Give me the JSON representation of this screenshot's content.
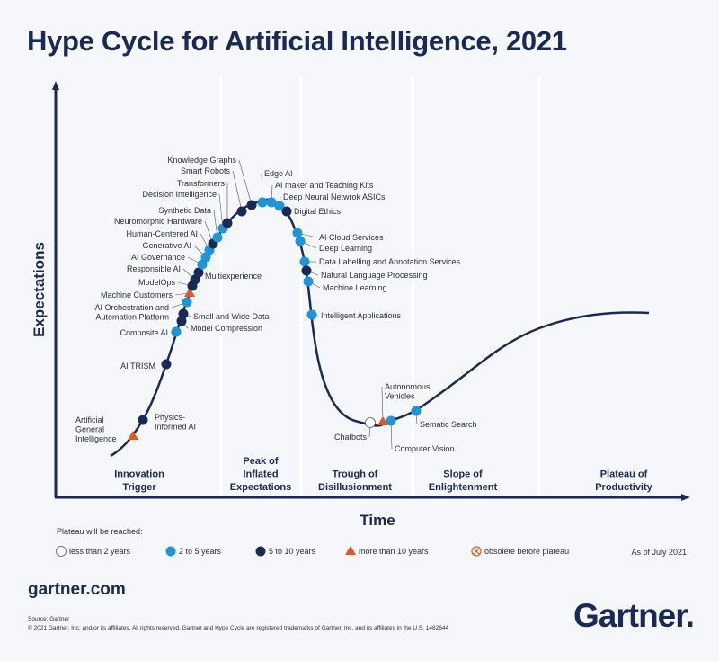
{
  "title": "Hype Cycle for Artificial Intelligence, 2021",
  "axes": {
    "y_label": "Expectations",
    "x_label": "Time"
  },
  "phases": [
    {
      "lines": [
        "Innovation",
        "Trigger"
      ]
    },
    {
      "lines": [
        "Peak of",
        "Inflated",
        "Expectations"
      ]
    },
    {
      "lines": [
        "Trough of",
        "Disillusionment"
      ]
    },
    {
      "lines": [
        "Slope of",
        "Enlightenment"
      ]
    },
    {
      "lines": [
        "Plateau of",
        "Productivity"
      ]
    }
  ],
  "colors": {
    "navy": "#1a2a56",
    "less_than_2": "#ffffff",
    "2_to_5": "#1c96d8",
    "5_to_10": "#1a2a56",
    "more_than_10": "#e8561c",
    "obsolete": "#e8561c"
  },
  "technologies": [
    {
      "name": "Artificial General Intelligence",
      "lines": [
        "Artificial",
        "General",
        "Intelligence"
      ],
      "plateau": "more_than_10"
    },
    {
      "name": "Physics-Informed AI",
      "lines": [
        "Physics-",
        "Informed AI"
      ],
      "plateau": "5_to_10"
    },
    {
      "name": "AI TRISM",
      "lines": [
        "AI TRISM"
      ],
      "plateau": "5_to_10"
    },
    {
      "name": "Composite AI",
      "lines": [
        "Composite AI"
      ],
      "plateau": "2_to_5"
    },
    {
      "name": "Model Compression",
      "lines": [
        "Model Compression"
      ],
      "plateau": "5_to_10"
    },
    {
      "name": "Small and Wide Data",
      "lines": [
        "Small and Wide Data"
      ],
      "plateau": "5_to_10"
    },
    {
      "name": "AI Orchestration and Automation Platform",
      "lines": [
        "AI Orchestration and",
        "Automation Platform"
      ],
      "plateau": "2_to_5"
    },
    {
      "name": "Machine Customers",
      "lines": [
        "Machine Customers"
      ],
      "plateau": "more_than_10"
    },
    {
      "name": "ModelOps",
      "lines": [
        "ModelOps"
      ],
      "plateau": "5_to_10"
    },
    {
      "name": "Multiexperience",
      "lines": [
        "Multiexperience"
      ],
      "plateau": "5_to_10"
    },
    {
      "name": "Responsible AI",
      "lines": [
        "Responsible AI"
      ],
      "plateau": "5_to_10"
    },
    {
      "name": "AI Governance",
      "lines": [
        "AI Governance"
      ],
      "plateau": "2_to_5"
    },
    {
      "name": "Generative AI",
      "lines": [
        "Generative AI"
      ],
      "plateau": "2_to_5"
    },
    {
      "name": "Human-Centered AI",
      "lines": [
        "Human-Centered AI"
      ],
      "plateau": "2_to_5"
    },
    {
      "name": "Neuromorphic Hardware",
      "lines": [
        "Neuromorphic Hardware"
      ],
      "plateau": "5_to_10"
    },
    {
      "name": "Synthetic Data",
      "lines": [
        "Synthetic Data"
      ],
      "plateau": "2_to_5"
    },
    {
      "name": "Decision Intelligence",
      "lines": [
        "Decision Intelligence"
      ],
      "plateau": "2_to_5"
    },
    {
      "name": "Transformers",
      "lines": [
        "Transformers"
      ],
      "plateau": "5_to_10"
    },
    {
      "name": "Smart Robots",
      "lines": [
        "Smart Robots"
      ],
      "plateau": "5_to_10"
    },
    {
      "name": "Knowledge Graphs",
      "lines": [
        "Knowledge Graphs"
      ],
      "plateau": "5_to_10"
    },
    {
      "name": "Edge AI",
      "lines": [
        "Edge AI"
      ],
      "plateau": "2_to_5"
    },
    {
      "name": "AI maker and Teaching Kits",
      "lines": [
        "AI maker and Teaching Kits"
      ],
      "plateau": "2_to_5"
    },
    {
      "name": "Deep Neural Netwrok ASICs",
      "lines": [
        "Deep Neural Netwrok ASICs"
      ],
      "plateau": "2_to_5"
    },
    {
      "name": "Digital Ethics",
      "lines": [
        "Digital Ethics"
      ],
      "plateau": "5_to_10"
    },
    {
      "name": "AI Cloud Services",
      "lines": [
        "AI Cloud Services"
      ],
      "plateau": "2_to_5"
    },
    {
      "name": "Deep Learning",
      "lines": [
        "Deep Learning"
      ],
      "plateau": "2_to_5"
    },
    {
      "name": "Data Labelling and Annotation Services",
      "lines": [
        "Data Labelling and Annotation Services"
      ],
      "plateau": "2_to_5"
    },
    {
      "name": "Natural Language Processing",
      "lines": [
        "Natural Language Processing"
      ],
      "plateau": "5_to_10"
    },
    {
      "name": "Machine Learning",
      "lines": [
        "Machine Learning"
      ],
      "plateau": "2_to_5"
    },
    {
      "name": "Intelligent Applications",
      "lines": [
        "Intelligent Applications"
      ],
      "plateau": "2_to_5"
    },
    {
      "name": "Chatbots",
      "lines": [
        "Chatbots"
      ],
      "plateau": "less_than_2"
    },
    {
      "name": "Autonomous Vehicles",
      "lines": [
        "Autonomous",
        "Vehicles"
      ],
      "plateau": "more_than_10"
    },
    {
      "name": "Computer Vision",
      "lines": [
        "Computer Vision"
      ],
      "plateau": "2_to_5"
    },
    {
      "name": "Sematic Search",
      "lines": [
        "Sematic Search"
      ],
      "plateau": "2_to_5"
    }
  ],
  "legend": {
    "heading": "Plateau will be reached:",
    "items": [
      {
        "key": "less_than_2",
        "label": "less than 2 years"
      },
      {
        "key": "2_to_5",
        "label": "2 to 5 years"
      },
      {
        "key": "5_to_10",
        "label": "5 to 10 years"
      },
      {
        "key": "more_than_10",
        "label": "more than 10 years"
      },
      {
        "key": "obsolete",
        "label": "obsolete before plateau"
      }
    ],
    "as_of": "As of July 2021"
  },
  "footer": {
    "site": "gartner.com",
    "source": "Source: Gartner",
    "copyright": "© 2021 Gartner, Inc. and/or its affiliates. All rights reserved. Gartner and Hype Cycle are registered trademarks of Gartner, Inc. and its affiliates in the U.S. 1482644",
    "logo": "Gartner."
  }
}
